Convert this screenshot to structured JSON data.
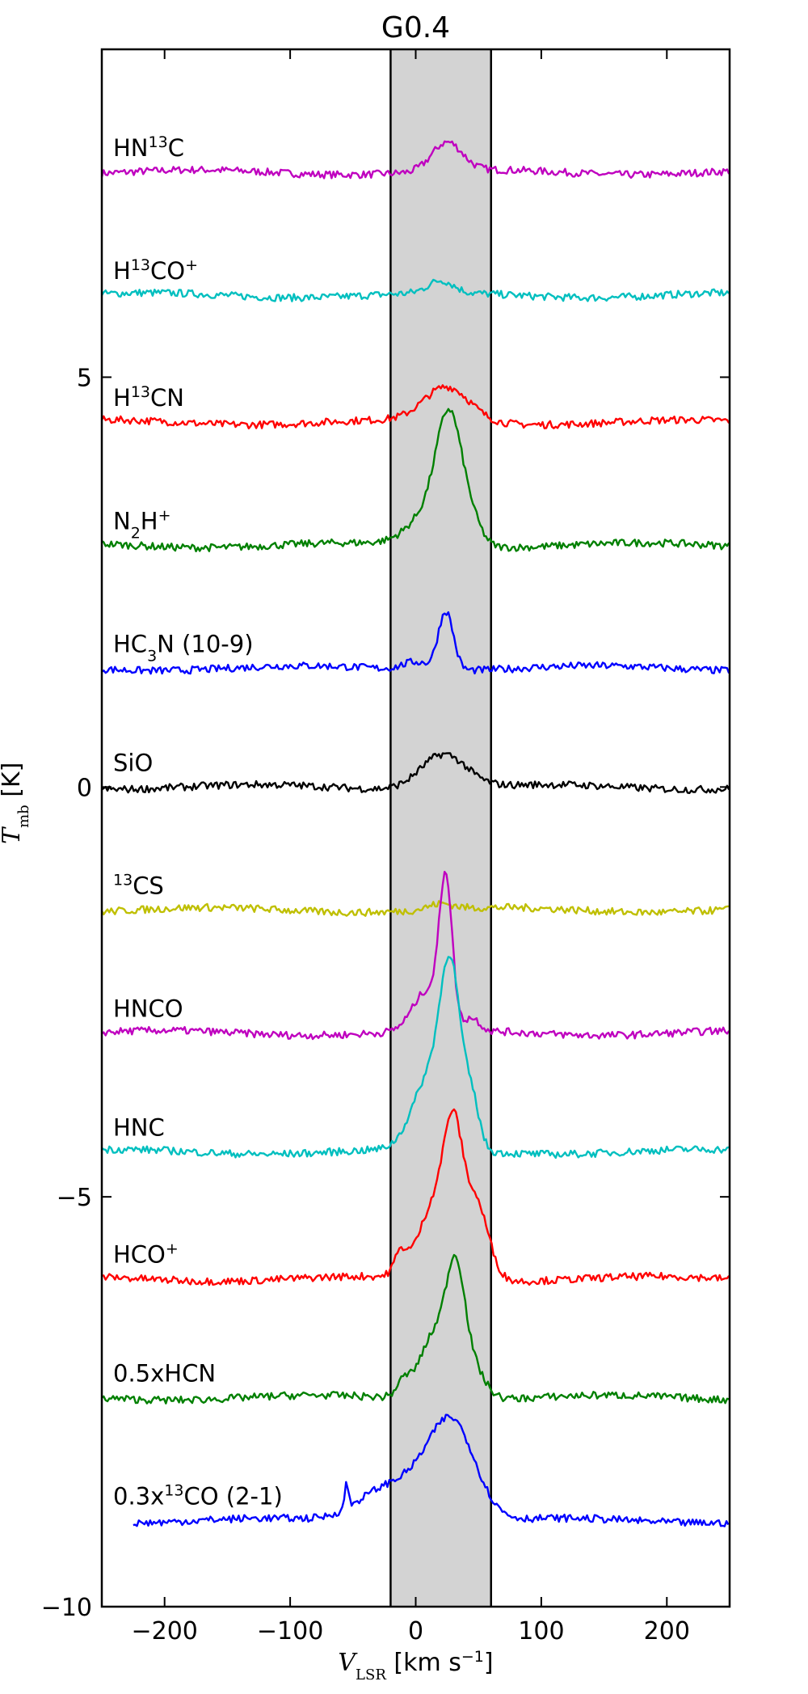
{
  "chart_data": {
    "type": "line",
    "title": "G0.4",
    "xlabel": "V_LSR [km s^-1]",
    "ylabel": "T_mb [K]",
    "xlim": [
      -250,
      250
    ],
    "ylim": [
      -10,
      9.0
    ],
    "xticks": [
      -200,
      -100,
      0,
      100,
      200
    ],
    "xtick_labels": [
      "−200",
      "−100",
      "0",
      "100",
      "200"
    ],
    "yticks": [
      -10,
      -5,
      0,
      5
    ],
    "ytick_labels": [
      "−10",
      "−5",
      "0",
      "5"
    ],
    "shaded_band": {
      "x_min": -20,
      "x_max": 60,
      "color": "#d3d3d3"
    },
    "grid": false,
    "series": [
      {
        "name": "HN13C",
        "label": {
          "pre": "HN",
          "sup": "13",
          "post": "C"
        },
        "color": "#bf00bf",
        "offset": 7.5,
        "lines": [
          {
            "center": 25,
            "width": 12,
            "amp": 0.35
          }
        ]
      },
      {
        "name": "H13CO+",
        "label": {
          "pre": "H",
          "sup": "13",
          "post": "CO",
          "sup2": "+"
        },
        "color": "#00bfbf",
        "offset": 6.0,
        "lines": [
          {
            "center": 20,
            "width": 10,
            "amp": 0.15
          }
        ]
      },
      {
        "name": "H13CN",
        "label": {
          "pre": "H",
          "sup": "13",
          "post": "CN"
        },
        "color": "#ff0000",
        "offset": 4.45,
        "lines": [
          {
            "center": 25,
            "width": 18,
            "amp": 0.42
          }
        ]
      },
      {
        "name": "N2H+",
        "label": {
          "pre": "N",
          "sub": "2",
          "post": "H",
          "sup2": "+"
        },
        "color": "#008000",
        "offset": 2.95,
        "lines": [
          {
            "center": 27,
            "width": 10,
            "amp": 1.3
          },
          {
            "center": 15,
            "width": 18,
            "amp": 0.45
          },
          {
            "center": 45,
            "width": 8,
            "amp": 0.2
          }
        ]
      },
      {
        "name": "HC3N (10-9)",
        "label": {
          "pre": "HC",
          "sub": "3",
          "post": "N (10-9)"
        },
        "color": "#0000ff",
        "offset": 1.45,
        "lines": [
          {
            "center": 24,
            "width": 6,
            "amp": 0.72
          },
          {
            "center": 0,
            "width": 10,
            "amp": 0.1
          }
        ]
      },
      {
        "name": "SiO",
        "label": {
          "pre": "SiO"
        },
        "color": "#000000",
        "offset": 0.0,
        "lines": [
          {
            "center": 22,
            "width": 18,
            "amp": 0.42
          }
        ]
      },
      {
        "name": "13CS",
        "label": {
          "sup": "13",
          "post": "CS"
        },
        "color": "#bfbf00",
        "offset": -1.5,
        "lines": [
          {
            "center": 20,
            "width": 10,
            "amp": 0.07
          }
        ]
      },
      {
        "name": "HNCO",
        "label": {
          "pre": "HNCO"
        },
        "color": "#bf00bf",
        "offset": -3.0,
        "lines": [
          {
            "center": 24,
            "width": 5,
            "amp": 1.7
          },
          {
            "center": 10,
            "width": 12,
            "amp": 0.5
          },
          {
            "center": 45,
            "width": 6,
            "amp": 0.15
          }
        ]
      },
      {
        "name": "HNC",
        "label": {
          "pre": "HNC"
        },
        "color": "#00bfbf",
        "offset": -4.45,
        "lines": [
          {
            "center": 28,
            "width": 8,
            "amp": 1.9
          },
          {
            "center": 12,
            "width": 14,
            "amp": 0.9
          },
          {
            "center": 45,
            "width": 6,
            "amp": 0.55
          }
        ]
      },
      {
        "name": "HCO+",
        "label": {
          "pre": "HCO",
          "sup2": "+"
        },
        "color": "#ff0000",
        "offset": -6.0,
        "lines": [
          {
            "center": 30,
            "width": 7,
            "amp": 1.2
          },
          {
            "center": 18,
            "width": 14,
            "amp": 1.0
          },
          {
            "center": 48,
            "width": 10,
            "amp": 0.9
          },
          {
            "center": -12,
            "width": 5,
            "amp": 0.25
          }
        ]
      },
      {
        "name": "0.5xHCN",
        "label": {
          "pre": "0.5xHCN"
        },
        "color": "#008000",
        "offset": -7.45,
        "lines": [
          {
            "center": 32,
            "width": 7,
            "amp": 1.1
          },
          {
            "center": 18,
            "width": 14,
            "amp": 0.85
          },
          {
            "center": 45,
            "width": 10,
            "amp": 0.35
          },
          {
            "center": -10,
            "width": 5,
            "amp": 0.15
          }
        ]
      },
      {
        "name": "0.3x13CO (2-1)",
        "label": {
          "pre": "0.3x",
          "sup": "13",
          "post": "CO (2-1)"
        },
        "color": "#0000ff",
        "offset": -8.95,
        "x_start": -225,
        "lines": [
          {
            "center": 30,
            "width": 18,
            "amp": 1.05
          },
          {
            "center": 0,
            "width": 25,
            "amp": 0.45
          },
          {
            "center": -35,
            "width": 20,
            "amp": 0.2
          },
          {
            "center": -55,
            "width": 1.5,
            "amp": 0.3
          }
        ]
      }
    ]
  }
}
